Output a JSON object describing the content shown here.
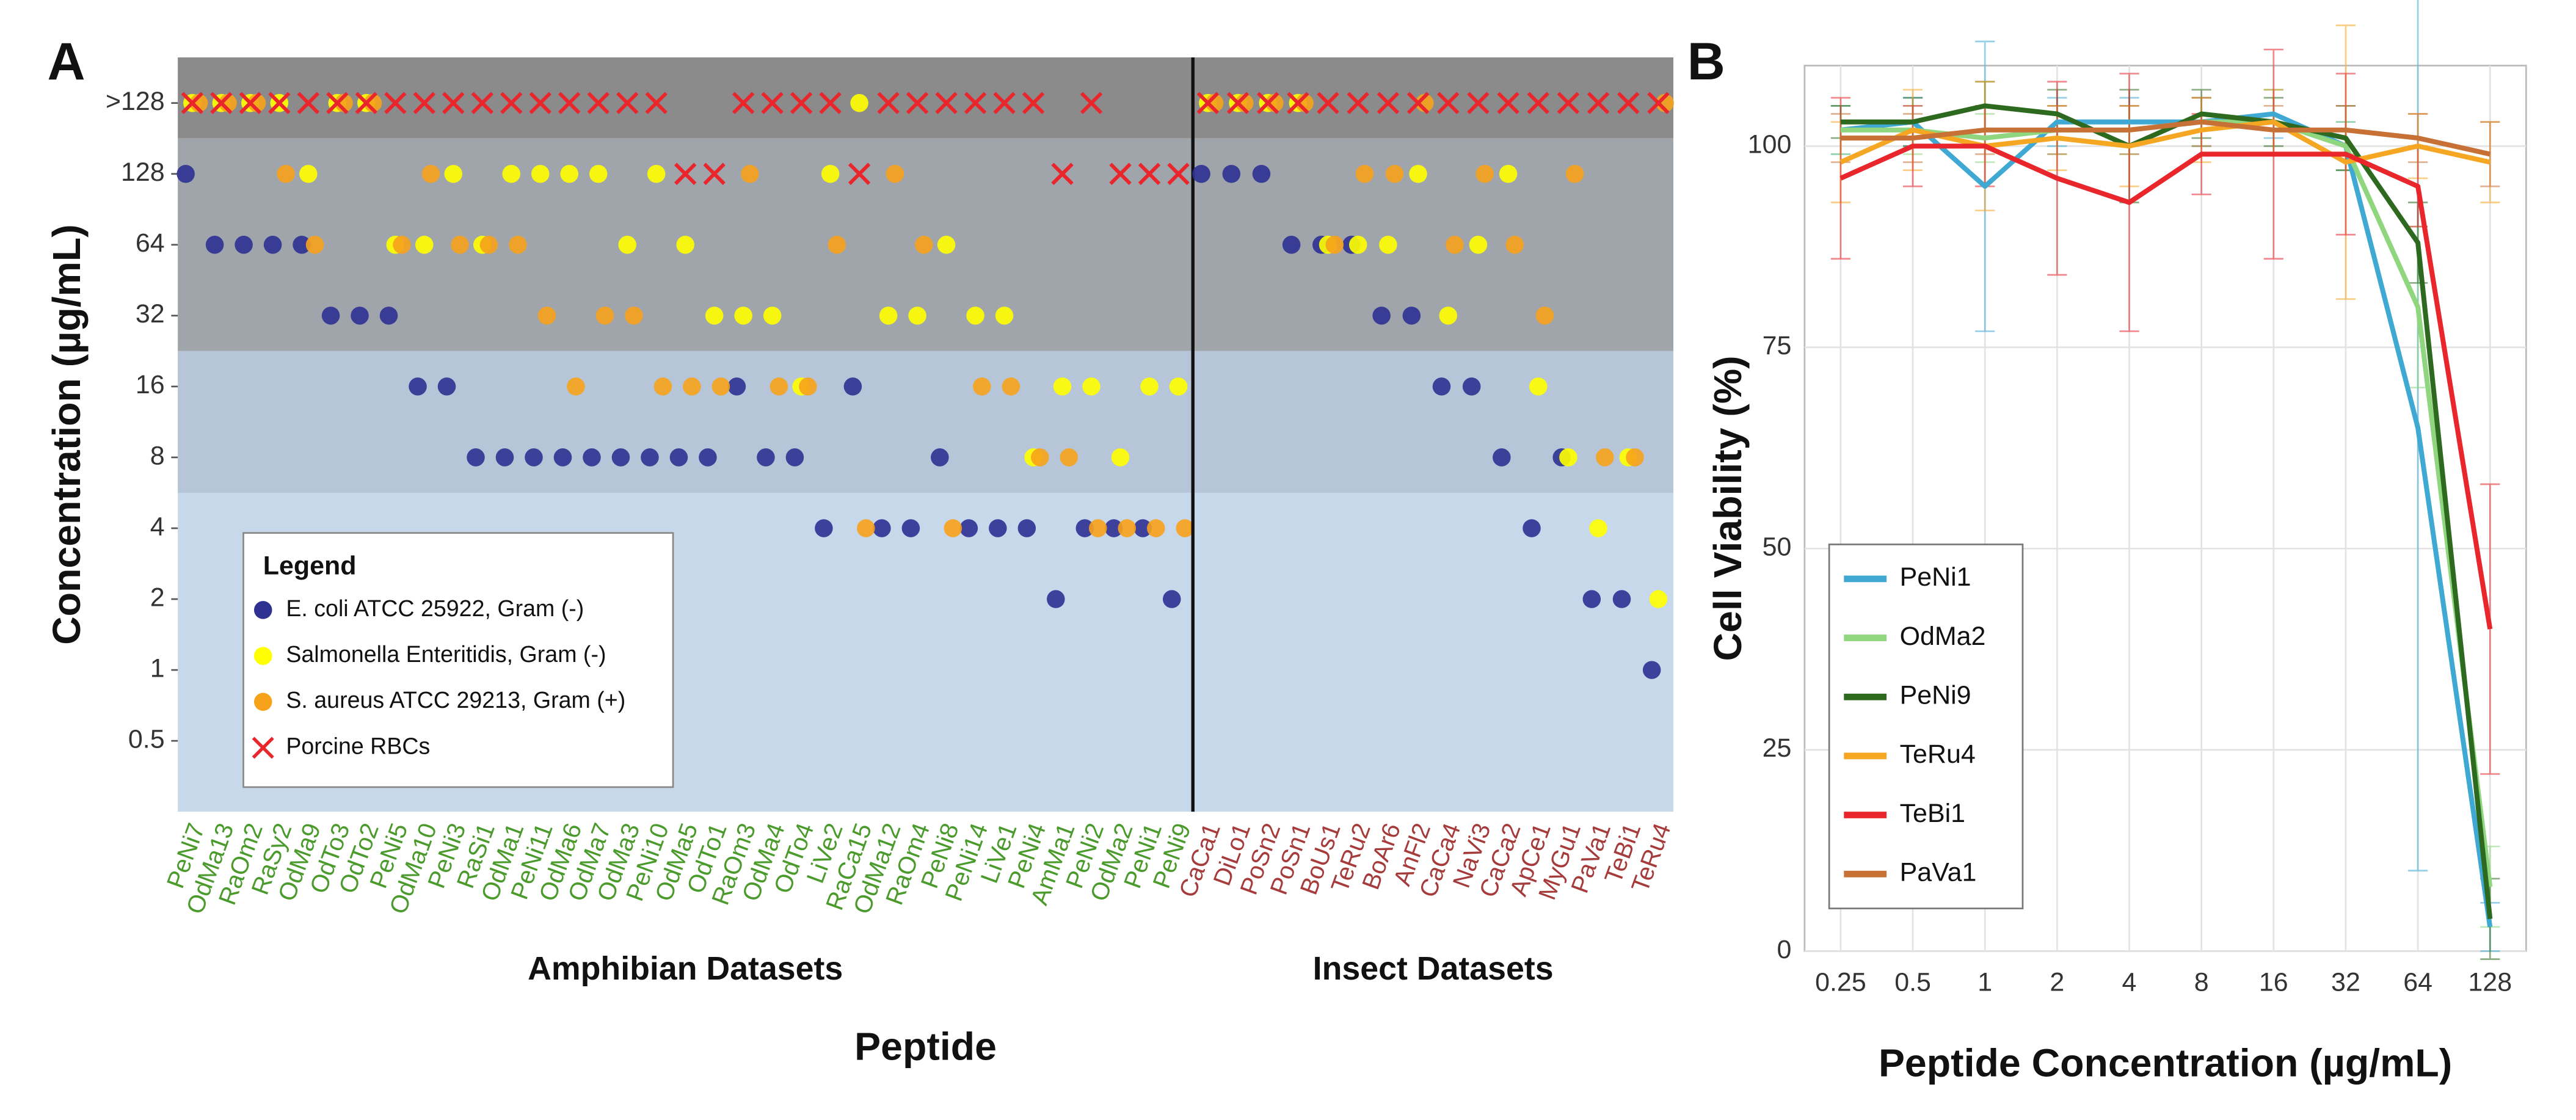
{
  "chart_data": [
    {
      "type": "scatter",
      "panel_label": "A",
      "ylabel": "Concentration (µg/mL)",
      "xlabel": "Peptide",
      "group_label": "Amphibian Datasets",
      "category_color": "#4a9a2c",
      "legend_title": "Legend",
      "ylog": true,
      "ylim": [
        0.25,
        400
      ],
      "yticks": [
        0.5,
        1,
        2,
        4,
        8,
        16,
        32,
        64,
        128,
        {
          "value": 256,
          "label": ">128"
        }
      ],
      "categories": [
        "PeNi7",
        "OdMa13",
        "RaOm2",
        "RaSy2",
        "OdMa9",
        "OdTo3",
        "OdTo2",
        "PeNi5",
        "OdMa10",
        "PeNi3",
        "RaSi1",
        "OdMa1",
        "PeNi11",
        "OdMa6",
        "OdMa7",
        "OdMa3",
        "PeNi10",
        "OdMa5",
        "OdTo1",
        "RaOm3",
        "OdMa4",
        "OdTo4",
        "LiVe2",
        "RaCa15",
        "OdMa12",
        "RaOm4",
        "PeNi8",
        "PeNi14",
        "LiVe1",
        "PeNi4",
        "AmMa1",
        "PeNi2",
        "OdMa2",
        "PeNi1",
        "PeNi9"
      ],
      "series": [
        {
          "name": "E. coli ATCC 25922, Gram (-)",
          "color": "#2e3192",
          "marker": "circle",
          "values": [
            128,
            64,
            64,
            64,
            64,
            32,
            32,
            32,
            16,
            16,
            8,
            8,
            8,
            8,
            8,
            8,
            8,
            8,
            8,
            16,
            8,
            8,
            4,
            16,
            4,
            4,
            8,
            4,
            4,
            4,
            2,
            4,
            4,
            4,
            2
          ]
        },
        {
          "name": "Salmonella Enteritidis, Gram (-)",
          "color": "#ffff00",
          "marker": "circle",
          "values": [
            256,
            256,
            256,
            256,
            128,
            256,
            256,
            64,
            64,
            128,
            64,
            128,
            128,
            128,
            128,
            64,
            128,
            64,
            32,
            32,
            32,
            16,
            128,
            256,
            32,
            32,
            64,
            32,
            32,
            8,
            16,
            16,
            8,
            16,
            16
          ]
        },
        {
          "name": "S. aureus ATCC 29213, Gram (+)",
          "color": "#f7a21b",
          "marker": "circle",
          "values": [
            256,
            256,
            256,
            128,
            64,
            256,
            256,
            64,
            128,
            64,
            64,
            64,
            32,
            16,
            32,
            32,
            16,
            16,
            16,
            128,
            16,
            16,
            64,
            4,
            128,
            64,
            4,
            16,
            16,
            8,
            8,
            4,
            4,
            4,
            4
          ]
        },
        {
          "name": "Porcine RBCs",
          "color": "#e8262b",
          "marker": "x",
          "values": [
            256,
            256,
            256,
            256,
            256,
            256,
            256,
            256,
            256,
            256,
            256,
            256,
            256,
            256,
            256,
            256,
            256,
            128,
            128,
            256,
            256,
            256,
            256,
            128,
            256,
            256,
            256,
            256,
            256,
            256,
            128,
            256,
            128,
            128,
            128
          ]
        }
      ]
    },
    {
      "type": "scatter",
      "group_label": "Insect Datasets",
      "category_color": "#a63b3b",
      "ylog": true,
      "ylim": [
        0.25,
        400
      ],
      "categories": [
        "CaCa1",
        "DiLo1",
        "PoSn2",
        "PoSn1",
        "BoUs1",
        "TeRu2",
        "BoAr6",
        "AnFl2",
        "CaCa4",
        "NaVi3",
        "CaCa2",
        "ApCe1",
        "MyGu1",
        "PaVa1",
        "TeBi1",
        "TeRu4"
      ],
      "series": [
        {
          "color": "#2e3192",
          "marker": "circle",
          "values": [
            128,
            128,
            128,
            64,
            64,
            64,
            32,
            32,
            16,
            16,
            8,
            4,
            8,
            2,
            2,
            1
          ]
        },
        {
          "color": "#ffff00",
          "marker": "circle",
          "values": [
            256,
            256,
            256,
            256,
            64,
            64,
            64,
            128,
            32,
            64,
            128,
            16,
            8,
            4,
            8,
            2
          ]
        },
        {
          "color": "#f7a21b",
          "marker": "circle",
          "values": [
            256,
            256,
            256,
            256,
            64,
            128,
            128,
            256,
            64,
            128,
            64,
            32,
            128,
            8,
            8,
            256
          ]
        },
        {
          "color": "#e8262b",
          "marker": "x",
          "values": [
            256,
            256,
            256,
            256,
            256,
            256,
            256,
            256,
            256,
            256,
            256,
            256,
            256,
            256,
            256,
            256
          ]
        }
      ]
    },
    {
      "type": "line",
      "panel_label": "B",
      "ylabel": "Cell Viability (%)",
      "xlabel": "Peptide Concentration (µg/mL)",
      "categories": [
        "0.25",
        "0.5",
        "1",
        "2",
        "4",
        "8",
        "16",
        "32",
        "64",
        "128"
      ],
      "ylim": [
        0,
        110
      ],
      "yticks": [
        0,
        25,
        50,
        75,
        100
      ],
      "grid": true,
      "series": [
        {
          "name": "PeNi1",
          "color": "#3fa9d3",
          "values": [
            102,
            103,
            95,
            103,
            103,
            103,
            104,
            100,
            65,
            3
          ],
          "errors": [
            3,
            3,
            18,
            3,
            3,
            3,
            3,
            3,
            55,
            3
          ]
        },
        {
          "name": "OdMa2",
          "color": "#8fd67f",
          "values": [
            102,
            102,
            101,
            102,
            102,
            103,
            103,
            100,
            80,
            8
          ],
          "errors": [
            3,
            3,
            3,
            3,
            3,
            3,
            4,
            3,
            10,
            5
          ]
        },
        {
          "name": "PeNi9",
          "color": "#2d6a1f",
          "values": [
            103,
            103,
            105,
            104,
            100,
            104,
            103,
            101,
            88,
            4
          ],
          "errors": [
            2,
            3,
            3,
            3,
            7,
            3,
            3,
            4,
            5,
            5
          ]
        },
        {
          "name": "TeRu4",
          "color": "#f5a623",
          "values": [
            98,
            102,
            100,
            101,
            100,
            102,
            103,
            98,
            100,
            98
          ],
          "errors": [
            5,
            5,
            8,
            4,
            5,
            4,
            4,
            17,
            4,
            5
          ]
        },
        {
          "name": "TeBi1",
          "color": "#e8262b",
          "values": [
            96,
            100,
            100,
            96,
            93,
            99,
            99,
            99,
            95,
            40
          ],
          "errors": [
            10,
            5,
            5,
            12,
            16,
            5,
            13,
            10,
            5,
            18
          ]
        },
        {
          "name": "PaVa1",
          "color": "#c87137",
          "values": [
            101,
            101,
            102,
            102,
            102,
            103,
            102,
            102,
            101,
            99
          ],
          "errors": [
            3,
            3,
            3,
            3,
            3,
            3,
            3,
            3,
            3,
            4
          ]
        }
      ]
    }
  ]
}
